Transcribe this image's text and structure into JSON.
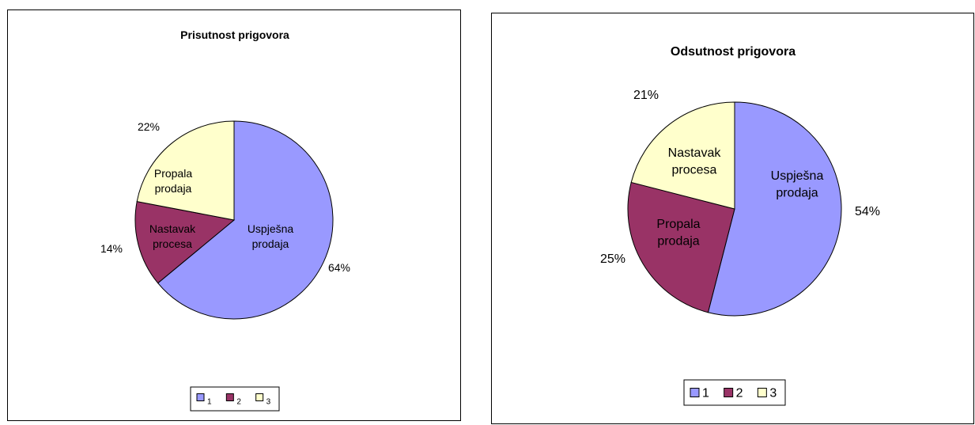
{
  "chart_data": [
    {
      "type": "pie",
      "title": "Prisutnost prigovora",
      "slices": [
        {
          "legend": "1",
          "label_line1": "Uspješna",
          "label_line2": "prodaja",
          "value": 64,
          "pct_label": "64%",
          "color": "#9999FF"
        },
        {
          "legend": "2",
          "label_line1": "Nastavak",
          "label_line2": "procesa",
          "value": 14,
          "pct_label": "14%",
          "color": "#993366"
        },
        {
          "legend": "3",
          "label_line1": "Propala",
          "label_line2": "prodaja",
          "value": 22,
          "pct_label": "22%",
          "color": "#FFFFCC"
        }
      ],
      "legend_placement": "bottom"
    },
    {
      "type": "pie",
      "title": "Odsutnost prigovora",
      "slices": [
        {
          "legend": "1",
          "label_line1": "Uspješna",
          "label_line2": "prodaja",
          "value": 54,
          "pct_label": "54%",
          "color": "#9999FF"
        },
        {
          "legend": "2",
          "label_line1": "Propala",
          "label_line2": "prodaja",
          "value": 25,
          "pct_label": "25%",
          "color": "#993366"
        },
        {
          "legend": "3",
          "label_line1": "Nastavak",
          "label_line2": "procesa",
          "value": 21,
          "pct_label": "21%",
          "color": "#FFFFCC"
        }
      ],
      "legend_placement": "bottom"
    }
  ]
}
